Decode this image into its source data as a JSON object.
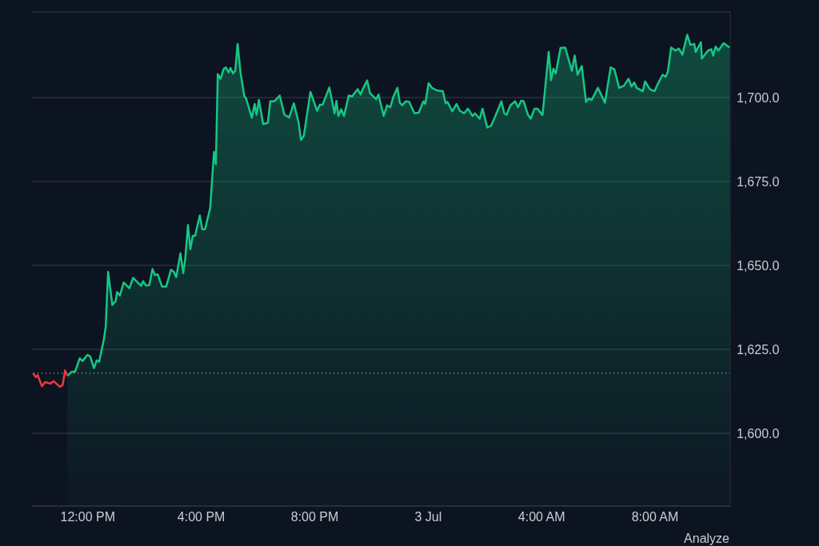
{
  "chart_data": {
    "type": "line",
    "annotations": [
      "Analyze"
    ],
    "xlim": [
      "--07-02T10:02",
      "--07-03T10:39"
    ],
    "xticks": [
      {
        "value": "--07-02T12:00",
        "label": "12:00 PM"
      },
      {
        "value": "--07-02T16:00",
        "label": "4:00 PM"
      },
      {
        "value": "--07-02T20:00",
        "label": "8:00 PM"
      },
      {
        "value": "--07-03T00:00",
        "label": "3 Jul"
      },
      {
        "value": "--07-03T04:00",
        "label": "4:00 AM"
      },
      {
        "value": "--07-03T08:00",
        "label": "8:00 AM"
      }
    ],
    "ylim": [
      1578.3,
      1725.5
    ],
    "yticks": [
      {
        "value": 1600,
        "label": "1,600.0"
      },
      {
        "value": 1625,
        "label": "1,625.0"
      },
      {
        "value": 1650,
        "label": "1,650.0"
      },
      {
        "value": 1675,
        "label": "1,675.0"
      },
      {
        "value": 1700,
        "label": "1,700.0"
      }
    ],
    "grid": "y",
    "legend": false,
    "marker": "none",
    "line_style": "solid",
    "ref_lines": [
      {
        "axis": "y",
        "value": 1617.9,
        "color": "#9aa0aa",
        "line_style": "dotted"
      }
    ],
    "series": [
      {
        "type": "line",
        "color": "#ea3943",
        "x": [
          "--07-02T10:04",
          "--07-02T10:10",
          "--07-02T10:14",
          "--07-02T10:23",
          "--07-02T10:30",
          "--07-02T10:41",
          "--07-02T10:48",
          "--07-02T11:01",
          "--07-02T11:07",
          "--07-02T11:12",
          "--07-02T11:17"
        ],
        "values": [
          1617.9,
          1616.7,
          1617.3,
          1614.0,
          1615.2,
          1614.8,
          1615.5,
          1613.8,
          1614.4,
          1618.7,
          1617.1
        ]
      },
      {
        "type": "area",
        "color": "#16c784",
        "x": [
          "--07-02T11:17",
          "--07-02T11:26",
          "--07-02T11:33",
          "--07-02T11:43",
          "--07-02T11:49",
          "--07-02T11:59",
          "--07-02T12:05",
          "--07-02T12:13",
          "--07-02T12:19",
          "--07-02T12:24",
          "--07-02T12:34",
          "--07-02T12:38",
          "--07-02T12:43",
          "--07-02T12:52",
          "--07-02T12:59",
          "--07-02T13:02",
          "--07-02T13:08",
          "--07-02T13:16",
          "--07-02T13:28",
          "--07-02T13:36",
          "--07-02T13:53",
          "--07-02T13:57",
          "--07-02T14:03",
          "--07-02T14:10",
          "--07-02T14:17",
          "--07-02T14:22",
          "--07-02T14:28",
          "--07-02T14:37",
          "--07-02T14:46",
          "--07-02T14:56",
          "--07-02T15:02",
          "--07-02T15:07",
          "--07-02T15:16",
          "--07-02T15:22",
          "--07-02T15:26",
          "--07-02T15:32",
          "--07-02T15:37",
          "--07-02T15:42",
          "--07-02T15:47",
          "--07-02T15:57",
          "--07-02T16:02",
          "--07-02T16:08",
          "--07-02T16:19",
          "--07-02T16:27",
          "--07-02T16:31",
          "--07-02T16:35",
          "--07-02T16:41",
          "--07-02T16:47",
          "--07-02T16:52",
          "--07-02T16:58",
          "--07-02T17:02",
          "--07-02T17:07",
          "--07-02T17:12",
          "--07-02T17:17",
          "--07-02T17:23",
          "--07-02T17:31",
          "--07-02T17:35",
          "--07-02T17:47",
          "--07-02T17:53",
          "--07-02T17:57",
          "--07-02T18:02",
          "--07-02T18:11",
          "--07-02T18:21",
          "--07-02T18:26",
          "--07-02T18:35",
          "--07-02T18:46",
          "--07-02T18:56",
          "--07-02T19:06",
          "--07-02T19:16",
          "--07-02T19:26",
          "--07-02T19:31",
          "--07-02T19:37",
          "--07-02T19:51",
          "--07-02T20:05",
          "--07-02T20:11",
          "--07-02T20:17",
          "--07-02T20:31",
          "--07-02T20:42",
          "--07-02T20:46",
          "--07-02T20:50",
          "--07-02T20:56",
          "--07-02T21:02",
          "--07-02T21:12",
          "--07-02T21:19",
          "--07-02T21:31",
          "--07-02T21:37",
          "--07-02T21:42",
          "--07-02T21:51",
          "--07-02T21:57",
          "--07-02T22:10",
          "--07-02T22:15",
          "--07-02T22:26",
          "--07-02T22:33",
          "--07-02T22:40",
          "--07-02T22:46",
          "--07-02T22:55",
          "--07-02T23:00",
          "--07-02T23:05",
          "--07-02T23:13",
          "--07-02T23:20",
          "--07-02T23:31",
          "--07-02T23:40",
          "--07-02T23:50",
          "--07-02T23:54",
          "--07-03T00:01",
          "--07-03T00:08",
          "--07-03T00:19",
          "--07-03T00:31",
          "--07-03T00:37",
          "--07-03T00:41",
          "--07-03T00:51",
          "--07-03T01:00",
          "--07-03T01:07",
          "--07-03T01:16",
          "--07-03T01:24",
          "--07-03T01:34",
          "--07-03T01:39",
          "--07-03T01:49",
          "--07-03T01:55",
          "--07-03T02:05",
          "--07-03T02:13",
          "--07-03T02:21",
          "--07-03T02:35",
          "--07-03T02:41",
          "--07-03T02:46",
          "--07-03T02:54",
          "--07-03T03:04",
          "--07-03T03:10",
          "--07-03T03:17",
          "--07-03T03:22",
          "--07-03T03:31",
          "--07-03T03:37",
          "--07-03T03:45",
          "--07-03T03:51",
          "--07-03T04:02",
          "--07-03T04:15",
          "--07-03T04:20",
          "--07-03T04:25",
          "--07-03T04:30",
          "--07-03T04:40",
          "--07-03T04:50",
          "--07-03T05:04",
          "--07-03T05:10",
          "--07-03T05:16",
          "--07-03T05:25",
          "--07-03T05:34",
          "--07-03T05:40",
          "--07-03T05:46",
          "--07-03T05:59",
          "--07-03T06:14",
          "--07-03T06:26",
          "--07-03T06:34",
          "--07-03T06:44",
          "--07-03T06:54",
          "--07-03T07:04",
          "--07-03T07:10",
          "--07-03T07:16",
          "--07-03T07:21",
          "--07-03T07:34",
          "--07-03T07:39",
          "--07-03T07:49",
          "--07-03T07:59",
          "--07-03T08:05",
          "--07-03T08:16",
          "--07-03T08:22",
          "--07-03T08:27",
          "--07-03T08:34",
          "--07-03T08:43",
          "--07-03T08:50",
          "--07-03T08:58",
          "--07-03T09:08",
          "--07-03T09:15",
          "--07-03T09:23",
          "--07-03T09:26",
          "--07-03T09:37",
          "--07-03T09:39",
          "--07-03T09:52",
          "--07-03T09:59",
          "--07-03T10:03",
          "--07-03T10:08",
          "--07-03T10:14",
          "--07-03T10:25",
          "--07-03T10:38"
        ],
        "values": [
          1617.1,
          1618.3,
          1618.3,
          1622.3,
          1621.5,
          1623.3,
          1622.9,
          1619.4,
          1621.7,
          1621.3,
          1627.9,
          1631.8,
          1648.1,
          1638.2,
          1639.4,
          1642.1,
          1641.0,
          1644.9,
          1643.2,
          1646.3,
          1643.9,
          1645.3,
          1644.0,
          1644.1,
          1648.9,
          1647.1,
          1647.3,
          1643.7,
          1643.7,
          1648.7,
          1648.1,
          1646.5,
          1653.6,
          1647.7,
          1651.7,
          1662.0,
          1654.8,
          1658.8,
          1658.8,
          1664.9,
          1660.8,
          1660.8,
          1667.1,
          1683.8,
          1680.2,
          1707.0,
          1705.6,
          1708.4,
          1709.0,
          1707.5,
          1708.8,
          1707.2,
          1708.0,
          1716.0,
          1707.6,
          1700.5,
          1699.7,
          1694.0,
          1698.1,
          1694.9,
          1699.3,
          1692.1,
          1692.5,
          1698.9,
          1698.9,
          1700.6,
          1694.9,
          1694.1,
          1698.3,
          1692.5,
          1687.4,
          1688.6,
          1701.7,
          1696.1,
          1697.9,
          1697.9,
          1703.0,
          1695.3,
          1699.0,
          1694.5,
          1696.5,
          1694.5,
          1700.6,
          1700.3,
          1702.5,
          1700.9,
          1702.6,
          1705.1,
          1701.3,
          1699.5,
          1700.9,
          1694.5,
          1697.7,
          1697.1,
          1700.1,
          1702.9,
          1698.5,
          1697.7,
          1698.9,
          1698.7,
          1695.3,
          1695.5,
          1698.9,
          1698.1,
          1704.3,
          1702.9,
          1702.1,
          1701.9,
          1698.3,
          1698.7,
          1695.9,
          1698.1,
          1696.1,
          1695.3,
          1696.7,
          1694.5,
          1695.3,
          1693.7,
          1696.7,
          1691.1,
          1691.6,
          1694.1,
          1698.9,
          1695.3,
          1694.9,
          1697.7,
          1698.9,
          1697.1,
          1699.1,
          1698.9,
          1694.9,
          1693.7,
          1696.7,
          1696.7,
          1694.8,
          1713.6,
          1705.2,
          1708.6,
          1707.2,
          1714.8,
          1714.9,
          1708.0,
          1712.5,
          1706.8,
          1709.4,
          1698.7,
          1699.7,
          1699.3,
          1702.9,
          1698.5,
          1709.0,
          1708.4,
          1702.9,
          1703.5,
          1705.6,
          1703.3,
          1704.5,
          1702.9,
          1701.9,
          1704.8,
          1702.5,
          1701.9,
          1703.8,
          1706.8,
          1706.2,
          1707.6,
          1714.9,
          1714.0,
          1714.6,
          1712.8,
          1718.7,
          1715.7,
          1716.0,
          1713.6,
          1716.5,
          1711.6,
          1714.0,
          1714.4,
          1712.5,
          1715.2,
          1714.0,
          1716.2,
          1714.9
        ]
      }
    ]
  }
}
